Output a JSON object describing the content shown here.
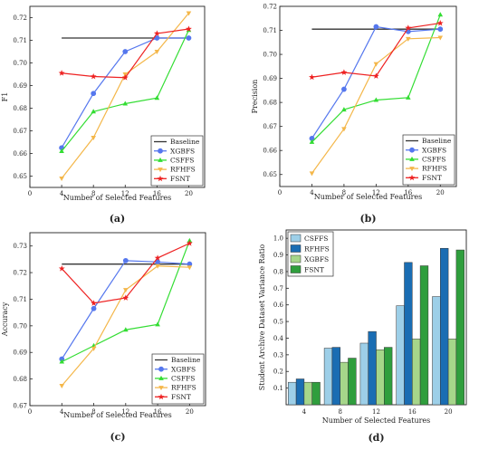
{
  "chart_data": [
    {
      "id": "a",
      "type": "line",
      "panel_label": "(a)",
      "title": "",
      "xlabel": "Number of Selected Features",
      "ylabel": "F1",
      "xlim": [
        0,
        22
      ],
      "ylim": [
        0.645,
        0.725
      ],
      "xticks": [
        0,
        4,
        8,
        12,
        16,
        20
      ],
      "yticks": [
        0.65,
        0.66,
        0.67,
        0.68,
        0.69,
        0.7,
        0.71,
        0.72
      ],
      "ytick_labels": [
        "0.65",
        "0.66",
        "0.67",
        "0.68",
        "0.69",
        "0.70",
        "0.71",
        "0.72"
      ],
      "legend_position": "bottom-right",
      "baseline": {
        "name": "Baseline",
        "value": 0.711,
        "x": [
          4,
          20
        ],
        "color": "#333333"
      },
      "series": [
        {
          "name": "XGBFS",
          "color": "#5577ee",
          "marker": "circle",
          "x": [
            4,
            8,
            12,
            16,
            20
          ],
          "values": [
            0.6625,
            0.6865,
            0.705,
            0.711,
            0.711
          ]
        },
        {
          "name": "CSFFS",
          "color": "#33dd33",
          "marker": "triangle",
          "x": [
            4,
            8,
            12,
            16,
            20
          ],
          "values": [
            0.661,
            0.6785,
            0.682,
            0.6845,
            0.7145
          ]
        },
        {
          "name": "RFHFS",
          "color": "#f4b74a",
          "marker": "tri-down",
          "x": [
            4,
            8,
            12,
            16,
            20
          ],
          "values": [
            0.649,
            0.667,
            0.695,
            0.705,
            0.722
          ]
        },
        {
          "name": "FSNT",
          "color": "#ee2222",
          "marker": "star",
          "x": [
            4,
            8,
            12,
            16,
            20
          ],
          "values": [
            0.6955,
            0.694,
            0.6935,
            0.713,
            0.715
          ]
        }
      ]
    },
    {
      "id": "b",
      "type": "line",
      "panel_label": "(b)",
      "title": "",
      "xlabel": "Number of Selected Features",
      "ylabel": "Precision",
      "xlim": [
        0,
        22
      ],
      "ylim": [
        0.645,
        0.72
      ],
      "xticks": [
        0,
        4,
        8,
        12,
        16,
        20
      ],
      "yticks": [
        0.65,
        0.66,
        0.67,
        0.68,
        0.69,
        0.7,
        0.71,
        0.72
      ],
      "ytick_labels": [
        "0.65",
        "0.66",
        "0.67",
        "0.68",
        "0.69",
        "0.70",
        "0.71",
        "0.72"
      ],
      "legend_position": "bottom-right",
      "baseline": {
        "name": "Baseline",
        "value": 0.7105,
        "x": [
          4,
          20
        ],
        "color": "#333333"
      },
      "series": [
        {
          "name": "XGBFS",
          "color": "#5577ee",
          "marker": "circle",
          "x": [
            4,
            8,
            12,
            16,
            20
          ],
          "values": [
            0.665,
            0.6855,
            0.7115,
            0.7095,
            0.7105
          ]
        },
        {
          "name": "CSFFS",
          "color": "#33dd33",
          "marker": "triangle",
          "x": [
            4,
            8,
            12,
            16,
            20
          ],
          "values": [
            0.6635,
            0.677,
            0.681,
            0.682,
            0.7165
          ]
        },
        {
          "name": "RFHFS",
          "color": "#f4b74a",
          "marker": "tri-down",
          "x": [
            4,
            8,
            12,
            16,
            20
          ],
          "values": [
            0.6505,
            0.669,
            0.696,
            0.7065,
            0.707
          ]
        },
        {
          "name": "FSNT",
          "color": "#ee2222",
          "marker": "star",
          "x": [
            4,
            8,
            12,
            16,
            20
          ],
          "values": [
            0.6905,
            0.6925,
            0.691,
            0.711,
            0.713
          ]
        }
      ]
    },
    {
      "id": "c",
      "type": "line",
      "panel_label": "(c)",
      "title": "",
      "xlabel": "Number of Selected Features",
      "ylabel": "Accuracy",
      "xlim": [
        0,
        22
      ],
      "ylim": [
        0.67,
        0.735
      ],
      "xticks": [
        0,
        4,
        8,
        12,
        16,
        20
      ],
      "yticks": [
        0.67,
        0.68,
        0.69,
        0.7,
        0.71,
        0.72,
        0.73
      ],
      "ytick_labels": [
        "0.67",
        "0.68",
        "0.69",
        "0.70",
        "0.71",
        "0.72",
        "0.73"
      ],
      "legend_position": "bottom-right",
      "baseline": {
        "name": "Baseline",
        "value": 0.7232,
        "x": [
          4,
          20
        ],
        "color": "#333333"
      },
      "series": [
        {
          "name": "XGBFS",
          "color": "#5577ee",
          "marker": "circle",
          "x": [
            4,
            8,
            12,
            16,
            20
          ],
          "values": [
            0.6875,
            0.7065,
            0.7245,
            0.724,
            0.7232
          ]
        },
        {
          "name": "CSFFS",
          "color": "#33dd33",
          "marker": "triangle",
          "x": [
            4,
            8,
            12,
            16,
            20
          ],
          "values": [
            0.6865,
            0.6925,
            0.6985,
            0.7005,
            0.732
          ]
        },
        {
          "name": "RFHFS",
          "color": "#f4b74a",
          "marker": "tri-down",
          "x": [
            4,
            8,
            12,
            16,
            20
          ],
          "values": [
            0.6775,
            0.6915,
            0.7135,
            0.7225,
            0.722
          ]
        },
        {
          "name": "FSNT",
          "color": "#ee2222",
          "marker": "star",
          "x": [
            4,
            8,
            12,
            16,
            20
          ],
          "values": [
            0.7215,
            0.7085,
            0.7105,
            0.7255,
            0.731
          ]
        }
      ]
    },
    {
      "id": "d",
      "type": "bar",
      "panel_label": "(d)",
      "title": "",
      "xlabel": "Number of Selected Features",
      "ylabel": "Student Archive Dataset Variance Ratio",
      "categories": [
        "4",
        "8",
        "12",
        "16",
        "20"
      ],
      "ylim": [
        0,
        1.05
      ],
      "yticks": [
        0.1,
        0.2,
        0.3,
        0.4,
        0.5,
        0.6,
        0.7,
        0.8,
        0.9,
        1.0
      ],
      "ytick_labels": [
        "0.1",
        "0.2",
        "0.3",
        "0.4",
        "0.5",
        "0.6",
        "0.7",
        "0.8",
        "0.9",
        "1.0"
      ],
      "legend_position": "top-left",
      "series": [
        {
          "name": "CSFFS",
          "color": "#9dcfe8",
          "values": [
            0.135,
            0.34,
            0.37,
            0.595,
            0.65
          ]
        },
        {
          "name": "RFHFS",
          "color": "#1a6db3",
          "values": [
            0.155,
            0.345,
            0.44,
            0.855,
            0.94
          ]
        },
        {
          "name": "XGBFS",
          "color": "#a6d68a",
          "values": [
            0.135,
            0.255,
            0.33,
            0.395,
            0.395
          ]
        },
        {
          "name": "FSNT",
          "color": "#2f9e3d",
          "values": [
            0.135,
            0.28,
            0.345,
            0.835,
            0.93
          ]
        }
      ]
    }
  ]
}
